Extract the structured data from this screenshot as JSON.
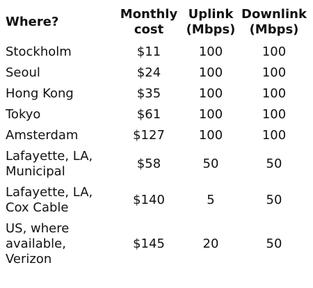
{
  "table": {
    "headers": {
      "where": "Where?",
      "cost_line1": "Monthly",
      "cost_line2": "cost",
      "uplink_line1": "Uplink",
      "uplink_line2": "(Mbps)",
      "downlink_line1": "Downlink",
      "downlink_line2": "(Mbps)"
    },
    "rows": [
      {
        "place": [
          "Stockholm"
        ],
        "cost": "$11",
        "uplink": "100",
        "downlink": "100"
      },
      {
        "place": [
          "Seoul"
        ],
        "cost": "$24",
        "uplink": "100",
        "downlink": "100"
      },
      {
        "place": [
          "Hong Kong"
        ],
        "cost": "$35",
        "uplink": "100",
        "downlink": "100"
      },
      {
        "place": [
          "Tokyo"
        ],
        "cost": "$61",
        "uplink": "100",
        "downlink": "100"
      },
      {
        "place": [
          "Amsterdam"
        ],
        "cost": "$127",
        "uplink": "100",
        "downlink": "100"
      },
      {
        "place": [
          "Lafayette, LA,",
          "Municipal"
        ],
        "cost": "$58",
        "uplink": "50",
        "downlink": "50"
      },
      {
        "place": [
          "Lafayette, LA,",
          "Cox Cable"
        ],
        "cost": "$140",
        "uplink": "5",
        "downlink": "50"
      },
      {
        "place": [
          "US, where",
          "available,",
          "Verizon"
        ],
        "cost": "$145",
        "uplink": "20",
        "downlink": "50"
      }
    ]
  }
}
